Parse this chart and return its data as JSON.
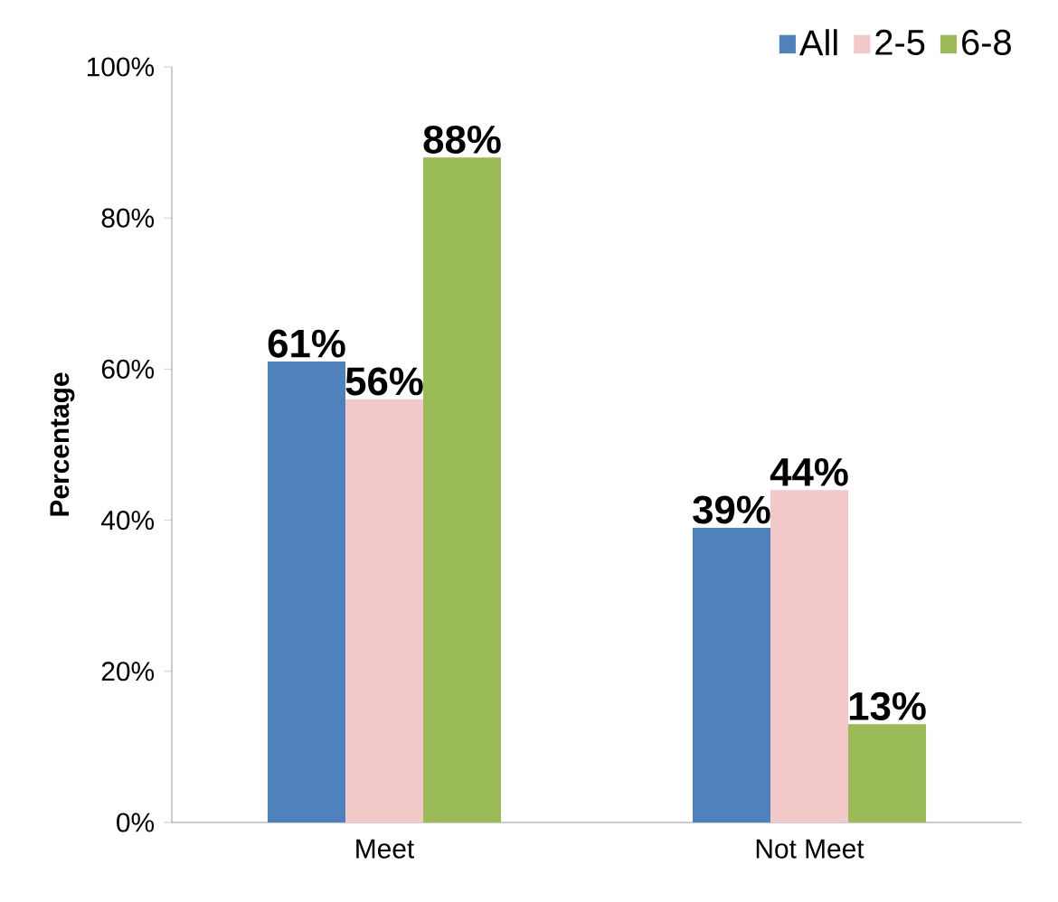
{
  "chart_data": {
    "type": "bar",
    "ylabel": "Percentage",
    "categories": [
      "Meet",
      "Not Meet"
    ],
    "series": [
      {
        "name": "All",
        "color": "#4f81bd",
        "values": [
          61,
          39
        ],
        "value_labels": [
          "61%",
          "39%"
        ]
      },
      {
        "name": "2-5",
        "color": "#f2c8c8",
        "values": [
          56,
          44
        ],
        "value_labels": [
          "56%",
          "44%"
        ]
      },
      {
        "name": "6-8",
        "color": "#9bbb59",
        "values": [
          88,
          13
        ],
        "value_labels": [
          "88%",
          "13%"
        ]
      }
    ],
    "ylim": [
      0,
      100
    ],
    "yticks": [
      {
        "value": 0,
        "label": "0%"
      },
      {
        "value": 20,
        "label": "20%"
      },
      {
        "value": 40,
        "label": "40%"
      },
      {
        "value": 60,
        "label": "60%"
      },
      {
        "value": 80,
        "label": "80%"
      },
      {
        "value": 100,
        "label": "100%"
      }
    ],
    "grid": false,
    "legend": "top right"
  }
}
